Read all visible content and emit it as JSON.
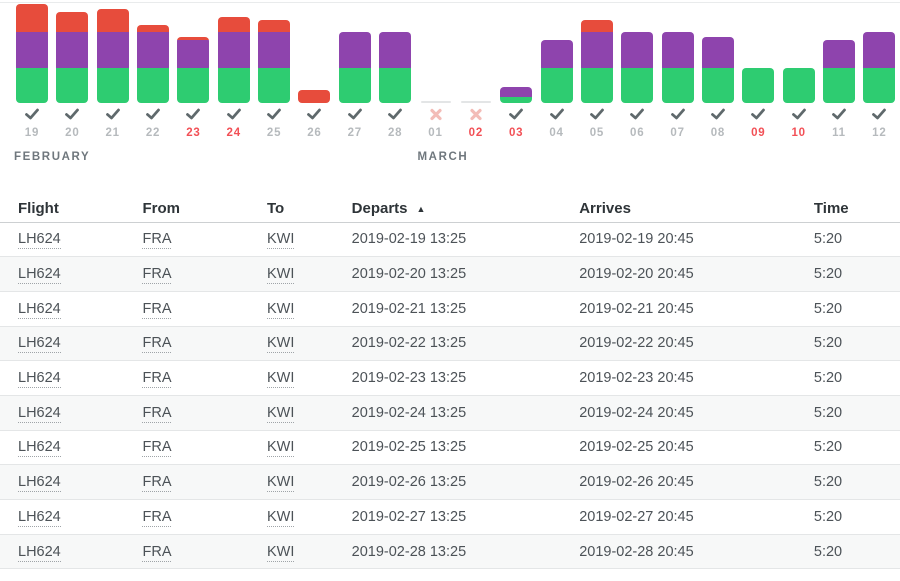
{
  "colors": {
    "green": "#2ecc71",
    "purple": "#8e44ad",
    "red": "#e74c3c",
    "check_gray": "#5f696c",
    "cross_pink": "#f3bcb7",
    "day_label_gray": "#b6babd",
    "day_label_weekend_red": "#f25056",
    "month_label_gray": "#6f777d"
  },
  "chart_data": {
    "type": "bar",
    "stacked": true,
    "title": "",
    "xlabel": "",
    "ylabel": "",
    "axes_visible": false,
    "grid": false,
    "legend": "none",
    "value_unit": "relative-height-px",
    "ylim": [
      0,
      100
    ],
    "categories": [
      "19",
      "20",
      "21",
      "22",
      "23",
      "24",
      "25",
      "26",
      "27",
      "28",
      "01",
      "02",
      "03",
      "04",
      "05",
      "06",
      "07",
      "08",
      "09",
      "10",
      "11",
      "12"
    ],
    "series": [
      {
        "name": "green",
        "color": "#2ecc71",
        "values": [
          35,
          35,
          35,
          35,
          35,
          35,
          35,
          0,
          35,
          35,
          0,
          0,
          6,
          35,
          35,
          35,
          35,
          35,
          35,
          35,
          35,
          35
        ]
      },
      {
        "name": "purple",
        "color": "#8e44ad",
        "values": [
          36,
          36,
          36,
          36,
          28,
          36,
          36,
          0,
          36,
          36,
          0,
          0,
          10,
          28,
          36,
          36,
          36,
          31,
          0,
          0,
          28,
          36
        ]
      },
      {
        "name": "red",
        "color": "#e74c3c",
        "values": [
          28,
          20,
          23,
          7,
          3,
          15,
          12,
          13,
          0,
          0,
          0,
          0,
          0,
          0,
          12,
          0,
          0,
          0,
          0,
          0,
          0,
          0
        ]
      }
    ],
    "day_status": [
      "check",
      "check",
      "check",
      "check",
      "check",
      "check",
      "check",
      "check",
      "check",
      "check",
      "cross",
      "cross",
      "check",
      "check",
      "check",
      "check",
      "check",
      "check",
      "check",
      "check",
      "check",
      "check"
    ],
    "weekend": [
      false,
      false,
      false,
      false,
      true,
      true,
      false,
      false,
      false,
      false,
      false,
      true,
      true,
      false,
      false,
      false,
      false,
      false,
      true,
      true,
      false,
      false
    ],
    "months": [
      {
        "label": "FEBRUARY",
        "index": 0
      },
      {
        "label": "MARCH",
        "index": 10
      }
    ]
  },
  "table": {
    "sort_glyph": "▲",
    "columns": [
      {
        "label": "Flight"
      },
      {
        "label": "From"
      },
      {
        "label": "To"
      },
      {
        "label": "Departs",
        "sort": "asc"
      },
      {
        "label": "Arrives"
      },
      {
        "label": "Time"
      }
    ],
    "rows": [
      {
        "flight": "LH624",
        "from": "FRA",
        "to": "KWI",
        "departs": "2019-02-19 13:25",
        "arrives": "2019-02-19 20:45",
        "time": "5:20"
      },
      {
        "flight": "LH624",
        "from": "FRA",
        "to": "KWI",
        "departs": "2019-02-20 13:25",
        "arrives": "2019-02-20 20:45",
        "time": "5:20"
      },
      {
        "flight": "LH624",
        "from": "FRA",
        "to": "KWI",
        "departs": "2019-02-21 13:25",
        "arrives": "2019-02-21 20:45",
        "time": "5:20"
      },
      {
        "flight": "LH624",
        "from": "FRA",
        "to": "KWI",
        "departs": "2019-02-22 13:25",
        "arrives": "2019-02-22 20:45",
        "time": "5:20"
      },
      {
        "flight": "LH624",
        "from": "FRA",
        "to": "KWI",
        "departs": "2019-02-23 13:25",
        "arrives": "2019-02-23 20:45",
        "time": "5:20"
      },
      {
        "flight": "LH624",
        "from": "FRA",
        "to": "KWI",
        "departs": "2019-02-24 13:25",
        "arrives": "2019-02-24 20:45",
        "time": "5:20"
      },
      {
        "flight": "LH624",
        "from": "FRA",
        "to": "KWI",
        "departs": "2019-02-25 13:25",
        "arrives": "2019-02-25 20:45",
        "time": "5:20"
      },
      {
        "flight": "LH624",
        "from": "FRA",
        "to": "KWI",
        "departs": "2019-02-26 13:25",
        "arrives": "2019-02-26 20:45",
        "time": "5:20"
      },
      {
        "flight": "LH624",
        "from": "FRA",
        "to": "KWI",
        "departs": "2019-02-27 13:25",
        "arrives": "2019-02-27 20:45",
        "time": "5:20"
      },
      {
        "flight": "LH624",
        "from": "FRA",
        "to": "KWI",
        "departs": "2019-02-28 13:25",
        "arrives": "2019-02-28 20:45",
        "time": "5:20"
      }
    ]
  }
}
